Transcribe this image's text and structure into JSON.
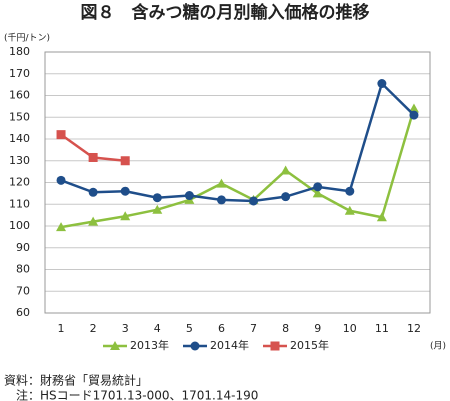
{
  "chart_data": {
    "type": "line",
    "title": "図８　含みつ糖の月別輸入価格の推移",
    "y_label": "(千円/トン)",
    "x_label": "(月)",
    "categories": [
      "1",
      "2",
      "3",
      "4",
      "5",
      "6",
      "7",
      "8",
      "9",
      "10",
      "11",
      "12"
    ],
    "series": [
      {
        "name": "2013年",
        "color": "#8dc03f",
        "marker": "triangle",
        "values": [
          99.5,
          102,
          104.5,
          107.5,
          112,
          119.5,
          112,
          125.5,
          115,
          107,
          104,
          154
        ]
      },
      {
        "name": "2014年",
        "color": "#1f4e8a",
        "marker": "circle",
        "values": [
          121,
          115.5,
          116,
          113,
          114,
          112,
          111.5,
          113.5,
          118,
          116,
          165.5,
          151
        ]
      },
      {
        "name": "2015年",
        "color": "#d6524e",
        "marker": "square",
        "values": [
          142,
          131.5,
          130,
          null,
          null,
          null,
          null,
          null,
          null,
          null,
          null,
          null
        ]
      }
    ],
    "ylim": [
      60,
      180
    ],
    "yticks": [
      60,
      70,
      80,
      90,
      100,
      110,
      120,
      130,
      140,
      150,
      160,
      170,
      180
    ],
    "grid": true,
    "legend": "bottom",
    "notes": [
      "資料：財務省「貿易統計」",
      "　注：HSコード1701.13-000、1701.14-190"
    ]
  }
}
